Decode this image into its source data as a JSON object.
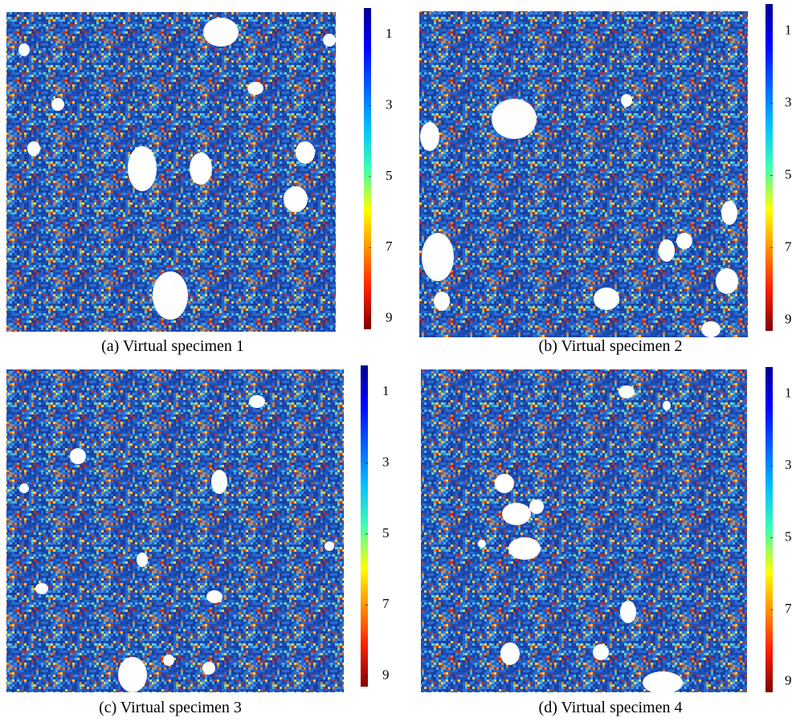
{
  "panels": [
    {
      "caption": "(a) Virtual specimen 1",
      "colorbar": {
        "ticks": [
          1,
          3,
          5,
          7,
          9
        ],
        "clim": [
          0.25,
          9.3
        ]
      }
    },
    {
      "caption": "(b) Virtual specimen 2",
      "colorbar": {
        "ticks": [
          1,
          3,
          5,
          7,
          9
        ],
        "clim": [
          0.25,
          9.3
        ]
      }
    },
    {
      "caption": "(c) Virtual specimen 3",
      "colorbar": {
        "ticks": [
          1,
          3,
          5,
          7,
          9
        ],
        "clim": [
          0.25,
          9.3
        ]
      }
    },
    {
      "caption": "(d) Virtual specimen 4",
      "colorbar": {
        "ticks": [
          1,
          3,
          5,
          7,
          9
        ],
        "clim": [
          0.25,
          9.3
        ]
      }
    }
  ]
}
